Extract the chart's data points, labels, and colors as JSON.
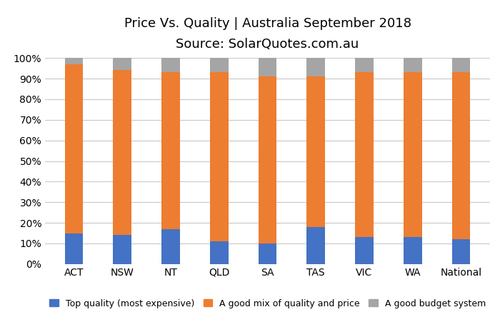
{
  "categories": [
    "ACT",
    "NSW",
    "NT",
    "QLD",
    "SA",
    "TAS",
    "VIC",
    "WA",
    "National"
  ],
  "top_quality": [
    15,
    14,
    17,
    11,
    10,
    18,
    13,
    13,
    12
  ],
  "good_mix": [
    82,
    80,
    76,
    82,
    81,
    73,
    80,
    80,
    81
  ],
  "budget": [
    3,
    6,
    7,
    7,
    9,
    9,
    7,
    7,
    7
  ],
  "colors": {
    "top_quality": "#4472C4",
    "good_mix": "#ED7D31",
    "budget": "#A5A5A5"
  },
  "title_line1": "Price Vs. Quality | Australia September 2018",
  "title_line2": "Source: SolarQuotes.com.au",
  "legend_labels": [
    "Top quality (most expensive)",
    "A good mix of quality and price",
    "A good budget system"
  ],
  "background_color": "#FFFFFF",
  "grid_color": "#C8C8C8",
  "bar_width": 0.38
}
